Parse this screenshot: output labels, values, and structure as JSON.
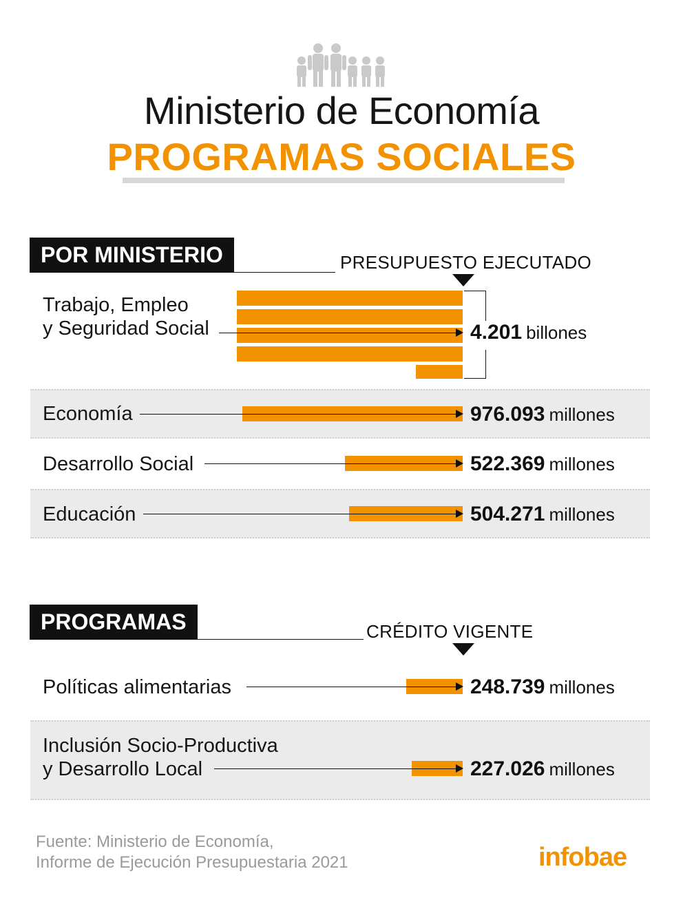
{
  "header": {
    "title": "Ministerio de Economía",
    "subtitle": "PROGRAMAS SOCIALES",
    "icon": "family-icon"
  },
  "sections": [
    {
      "tag": "POR MINISTERIO",
      "column_header": "PRESUPUESTO EJECUTADO"
    },
    {
      "tag": "PROGRAMAS",
      "column_header": "CRÉDITO VIGENTE"
    }
  ],
  "chart_data": [
    {
      "type": "bar",
      "categories": [
        "Trabajo, Empleo y Seguridad Social",
        "Economía",
        "Desarrollo Social",
        "Educación"
      ],
      "values": [
        4201000,
        976093,
        522369,
        504271
      ],
      "value_unit": "millones",
      "labels": [
        {
          "num": "4.201",
          "unit": "billones"
        },
        {
          "num": "976.093",
          "unit": "millones"
        },
        {
          "num": "522.369",
          "unit": "millones"
        },
        {
          "num": "504.271",
          "unit": "millones"
        }
      ]
    },
    {
      "type": "bar",
      "categories": [
        "Políticas alimentarias",
        "Inclusión Socio-Productiva y Desarrollo Local"
      ],
      "values": [
        248739,
        227026
      ],
      "value_unit": "millones",
      "labels": [
        {
          "num": "248.739",
          "unit": "millones"
        },
        {
          "num": "227.026",
          "unit": "millones"
        }
      ]
    }
  ],
  "rows": {
    "trabajo": {
      "line1": "Trabajo, Empleo",
      "line2": "y Seguridad Social"
    },
    "economia": "Economía",
    "desarrollo": "Desarrollo Social",
    "educacion": "Educación",
    "alimentarias": "Políticas alimentarias",
    "inclusion": {
      "line1": "Inclusión Socio-Productiva",
      "line2": "y Desarrollo Local"
    }
  },
  "footer": {
    "source_line1": "Fuente: Ministerio de Economía,",
    "source_line2": "Informe de Ejecución Presupuestaria 2021",
    "logo": "infobae"
  },
  "colors": {
    "accent": "#f39200",
    "band": "#ebebeb",
    "tag_bg": "#111111"
  }
}
